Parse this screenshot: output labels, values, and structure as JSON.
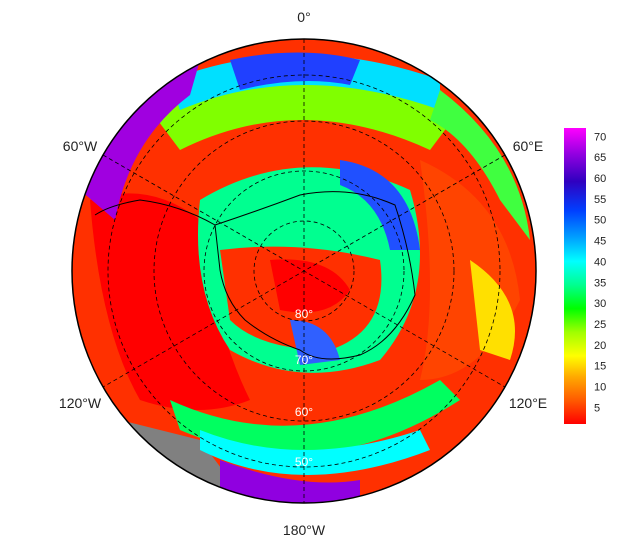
{
  "map": {
    "longitude_labels": [
      "0°",
      "60°E",
      "120°E",
      "180°W",
      "120°W",
      "60°W"
    ],
    "latitude_labels": [
      "80°",
      "70°",
      "60°",
      "50°"
    ],
    "colorbar": {
      "ticks": [
        5,
        10,
        15,
        20,
        25,
        30,
        35,
        40,
        45,
        50,
        55,
        60,
        65,
        70
      ],
      "min": 1,
      "max": 72,
      "colors": [
        "#ff0000",
        "#ff5a00",
        "#ffaa00",
        "#ffff00",
        "#a0ff00",
        "#00ff00",
        "#00ff90",
        "#00ffff",
        "#00a0ff",
        "#0040ff",
        "#3000c0",
        "#9000e0",
        "#ff00ff"
      ]
    },
    "land_color": "#808080",
    "outline_color": "#000000"
  }
}
